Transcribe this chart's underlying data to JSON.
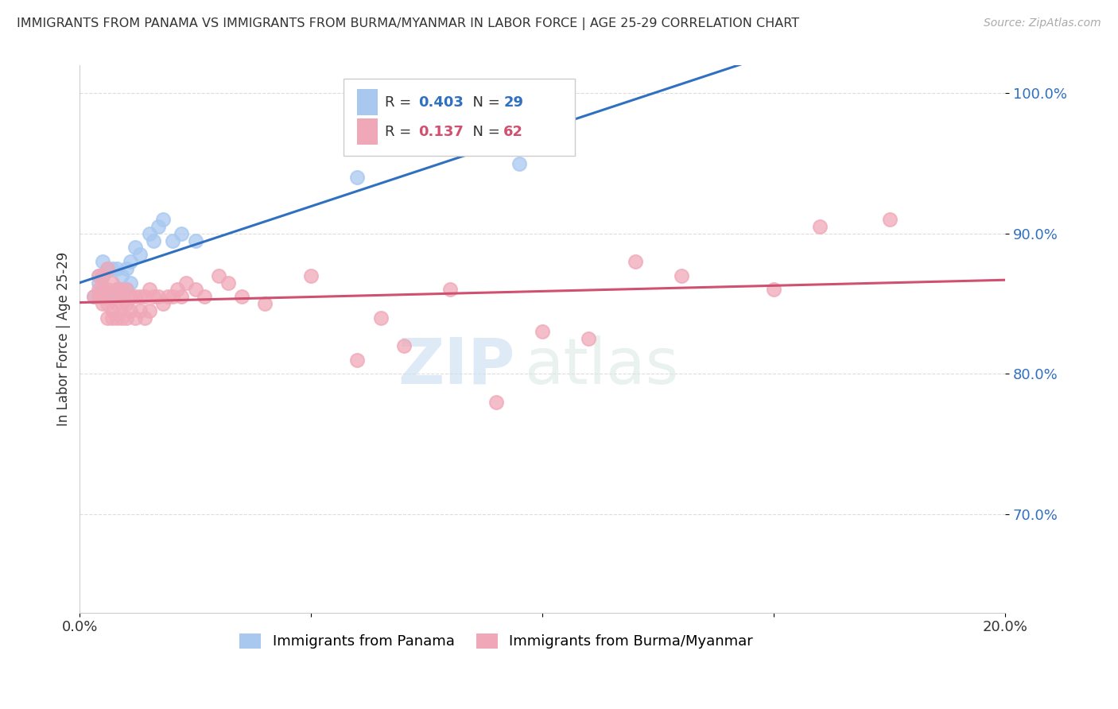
{
  "title": "IMMIGRANTS FROM PANAMA VS IMMIGRANTS FROM BURMA/MYANMAR IN LABOR FORCE | AGE 25-29 CORRELATION CHART",
  "source": "Source: ZipAtlas.com",
  "xlabel": "",
  "ylabel": "In Labor Force | Age 25-29",
  "xlim": [
    0.0,
    0.2
  ],
  "ylim": [
    0.63,
    1.02
  ],
  "yticks": [
    0.7,
    0.8,
    0.9,
    1.0
  ],
  "ytick_labels": [
    "70.0%",
    "80.0%",
    "90.0%",
    "100.0%"
  ],
  "xticks": [
    0.0,
    0.05,
    0.1,
    0.15,
    0.2
  ],
  "xtick_labels": [
    "0.0%",
    "",
    "",
    "",
    "20.0%"
  ],
  "panama_R": 0.403,
  "panama_N": 29,
  "burma_R": 0.137,
  "burma_N": 62,
  "panama_color": "#a8c8f0",
  "burma_color": "#f0a8b8",
  "panama_line_color": "#3070c0",
  "burma_line_color": "#d05070",
  "legend_label_panama": "Immigrants from Panama",
  "legend_label_burma": "Immigrants from Burma/Myanmar",
  "panama_x": [
    0.003,
    0.004,
    0.004,
    0.005,
    0.005,
    0.005,
    0.006,
    0.006,
    0.007,
    0.007,
    0.008,
    0.008,
    0.009,
    0.009,
    0.01,
    0.01,
    0.011,
    0.011,
    0.012,
    0.013,
    0.015,
    0.016,
    0.017,
    0.018,
    0.02,
    0.022,
    0.025,
    0.06,
    0.095
  ],
  "panama_y": [
    0.855,
    0.865,
    0.87,
    0.86,
    0.87,
    0.88,
    0.855,
    0.875,
    0.855,
    0.875,
    0.86,
    0.875,
    0.855,
    0.87,
    0.86,
    0.875,
    0.865,
    0.88,
    0.89,
    0.885,
    0.9,
    0.895,
    0.905,
    0.91,
    0.895,
    0.9,
    0.895,
    0.94,
    0.95
  ],
  "burma_x": [
    0.003,
    0.004,
    0.004,
    0.004,
    0.005,
    0.005,
    0.005,
    0.005,
    0.006,
    0.006,
    0.006,
    0.006,
    0.007,
    0.007,
    0.007,
    0.007,
    0.008,
    0.008,
    0.008,
    0.009,
    0.009,
    0.009,
    0.01,
    0.01,
    0.01,
    0.011,
    0.011,
    0.012,
    0.012,
    0.013,
    0.013,
    0.014,
    0.014,
    0.015,
    0.015,
    0.016,
    0.017,
    0.018,
    0.019,
    0.02,
    0.021,
    0.022,
    0.023,
    0.025,
    0.027,
    0.03,
    0.032,
    0.035,
    0.04,
    0.05,
    0.06,
    0.065,
    0.07,
    0.08,
    0.09,
    0.1,
    0.11,
    0.12,
    0.13,
    0.15,
    0.16,
    0.175
  ],
  "burma_y": [
    0.855,
    0.855,
    0.86,
    0.87,
    0.85,
    0.855,
    0.86,
    0.87,
    0.84,
    0.85,
    0.86,
    0.875,
    0.84,
    0.845,
    0.855,
    0.865,
    0.84,
    0.85,
    0.86,
    0.84,
    0.85,
    0.86,
    0.84,
    0.85,
    0.86,
    0.845,
    0.855,
    0.84,
    0.855,
    0.845,
    0.855,
    0.84,
    0.855,
    0.845,
    0.86,
    0.855,
    0.855,
    0.85,
    0.855,
    0.855,
    0.86,
    0.855,
    0.865,
    0.86,
    0.855,
    0.87,
    0.865,
    0.855,
    0.85,
    0.87,
    0.81,
    0.84,
    0.82,
    0.86,
    0.78,
    0.83,
    0.825,
    0.88,
    0.87,
    0.86,
    0.905,
    0.91
  ],
  "watermark_zip": "ZIP",
  "watermark_atlas": "atlas",
  "background_color": "#ffffff",
  "grid_color": "#dddddd"
}
